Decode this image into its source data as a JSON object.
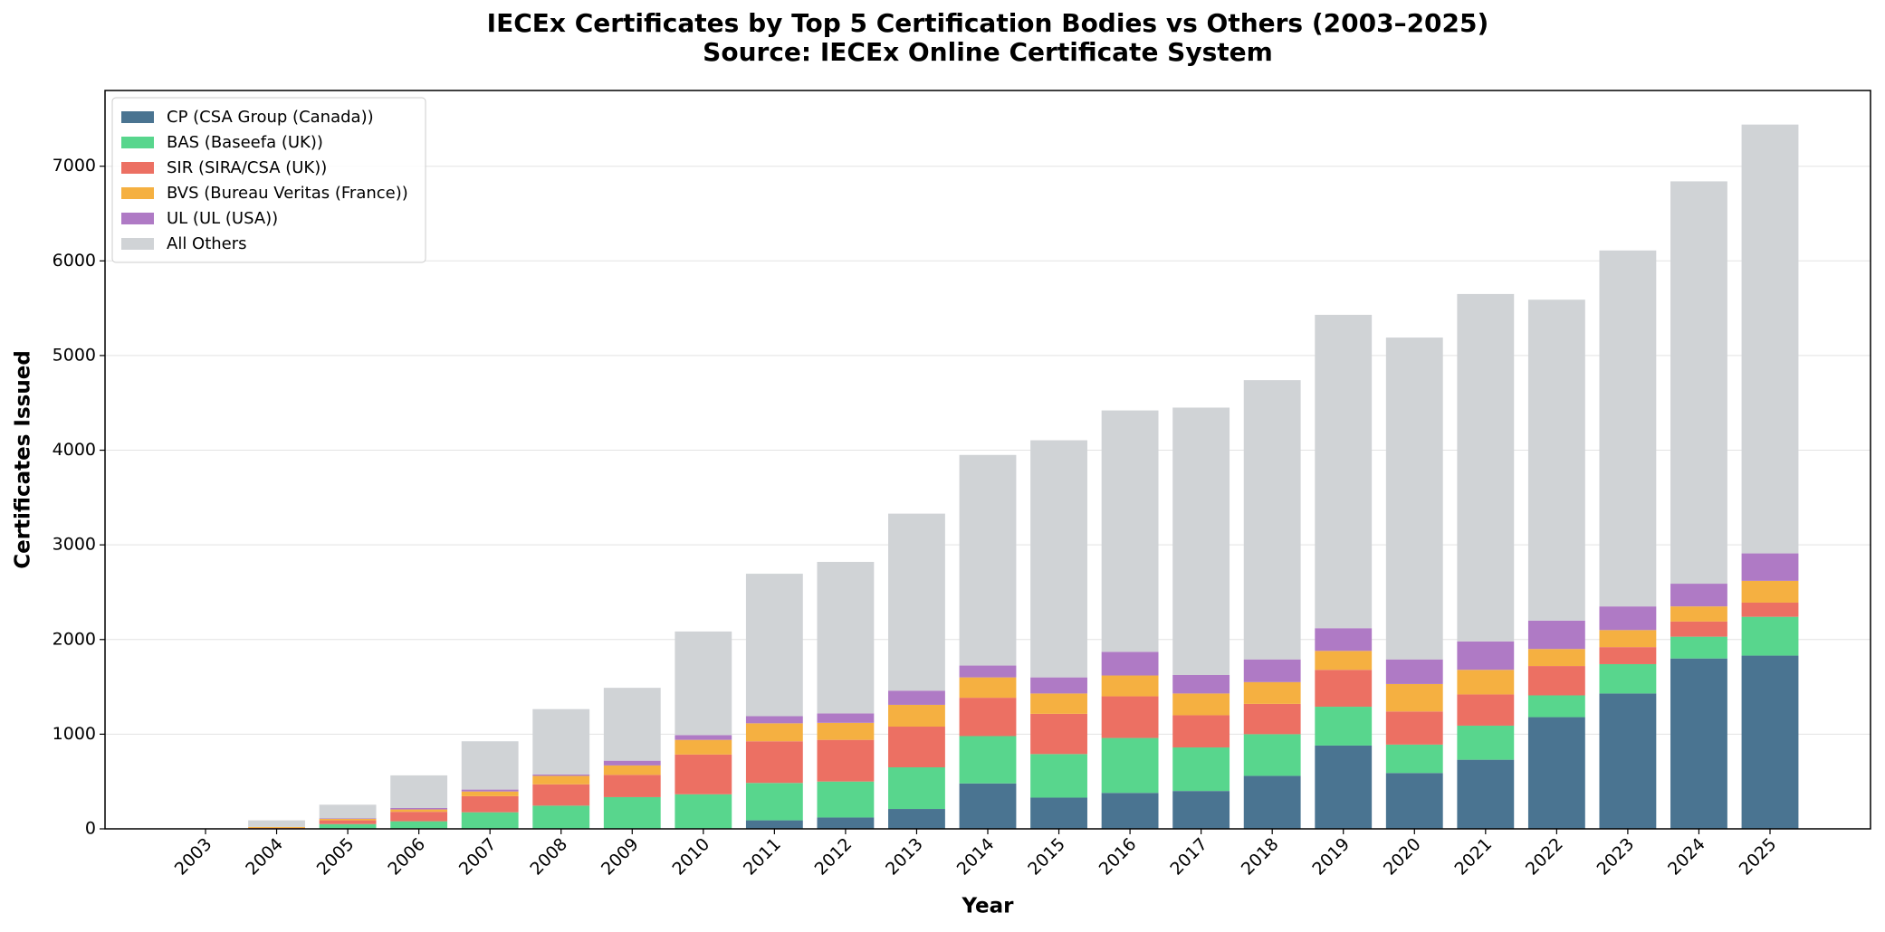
{
  "chart_data": {
    "type": "stacked_bar",
    "title": "IECEx Certificates by Top 5 Certification Bodies vs Others (2003–2025)",
    "subtitle": "Source: IECEx Online Certificate System",
    "x_label": "Year",
    "y_label": "Certificates Issued",
    "categories": [
      "2003",
      "2004",
      "2005",
      "2006",
      "2007",
      "2008",
      "2009",
      "2010",
      "2011",
      "2012",
      "2013",
      "2014",
      "2015",
      "2016",
      "2017",
      "2018",
      "2019",
      "2020",
      "2021",
      "2022",
      "2023",
      "2024",
      "2025"
    ],
    "series": [
      {
        "name": "CP (CSA Group (Canada))",
        "color": "#4a7491",
        "values": [
          0,
          0,
          0,
          0,
          0,
          0,
          0,
          0,
          90,
          120,
          210,
          480,
          330,
          380,
          400,
          560,
          880,
          590,
          730,
          1180,
          1430,
          1800,
          1830
        ]
      },
      {
        "name": "BAS (Baseefa (UK))",
        "color": "#58d68d",
        "values": [
          0,
          5,
          50,
          80,
          175,
          245,
          335,
          365,
          395,
          380,
          440,
          500,
          460,
          580,
          460,
          440,
          410,
          300,
          360,
          230,
          310,
          230,
          410
        ]
      },
      {
        "name": "SIR (SIRA/CSA (UK))",
        "color": "#ec7063",
        "values": [
          0,
          5,
          40,
          100,
          170,
          225,
          235,
          420,
          440,
          440,
          430,
          405,
          425,
          440,
          340,
          320,
          390,
          350,
          330,
          310,
          180,
          160,
          150
        ]
      },
      {
        "name": "BVS (Bureau Veritas (France))",
        "color": "#f5b041",
        "values": [
          0,
          10,
          15,
          25,
          50,
          90,
          100,
          155,
          190,
          180,
          230,
          215,
          215,
          220,
          230,
          230,
          200,
          290,
          260,
          180,
          180,
          160,
          230
        ]
      },
      {
        "name": "UL (UL (USA))",
        "color": "#af7ac5",
        "values": [
          0,
          0,
          5,
          15,
          20,
          15,
          50,
          50,
          75,
          100,
          150,
          125,
          170,
          250,
          195,
          240,
          240,
          260,
          300,
          300,
          250,
          240,
          290
        ]
      },
      {
        "name": "All Others",
        "color": "#d0d3d6",
        "values": [
          5,
          70,
          145,
          345,
          510,
          690,
          770,
          1095,
          1505,
          1600,
          1870,
          2225,
          2505,
          2550,
          2825,
          2950,
          3310,
          3400,
          3670,
          3390,
          3760,
          4250,
          4530
        ]
      }
    ],
    "ylim": [
      0,
      7800
    ],
    "yticks": [
      0,
      1000,
      2000,
      3000,
      4000,
      5000,
      6000,
      7000
    ],
    "grid": true,
    "legend": "upper-left"
  }
}
